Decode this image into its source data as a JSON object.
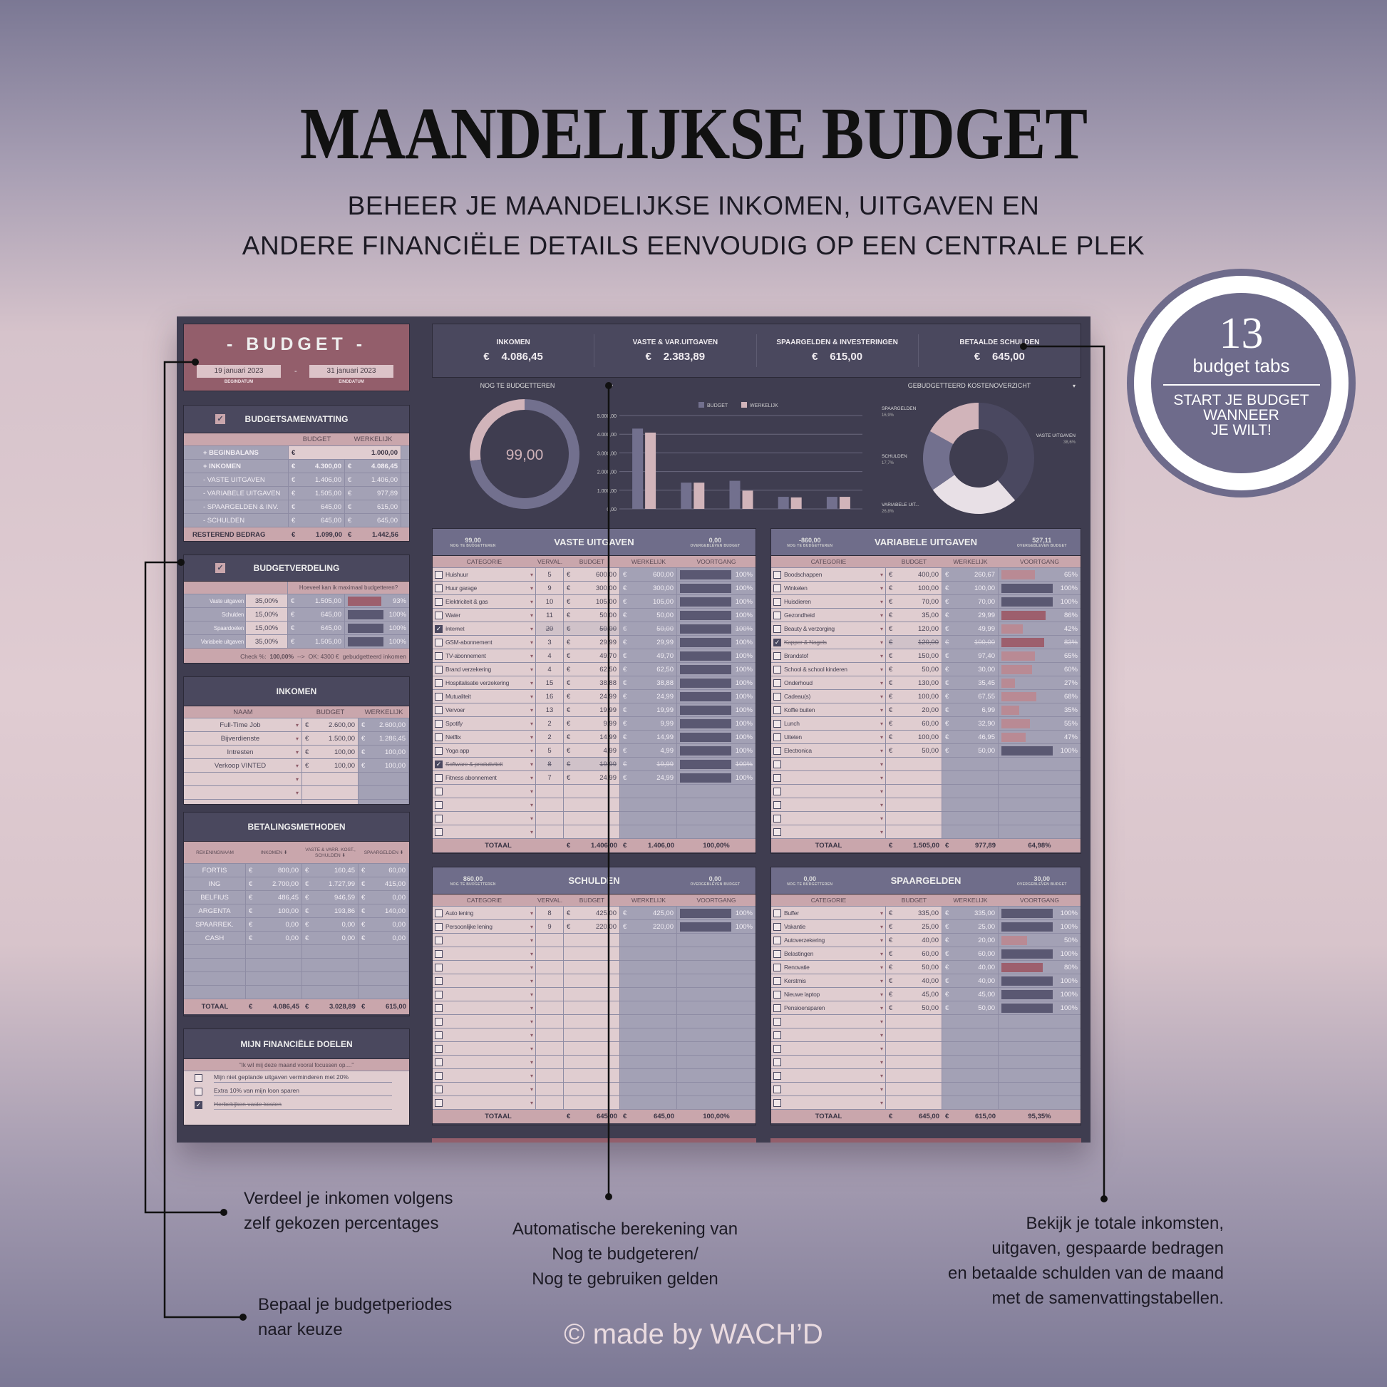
{
  "header": {
    "title": "MAANDELIJKSE BUDGET",
    "subtitle_1": "BEHEER JE MAANDELIJKSE INKOMEN, UITGAVEN EN",
    "subtitle_2": "ANDERE FINANCIËLE DETAILS EENVOUDIG OP EEN CENTRALE PLEK"
  },
  "badge": {
    "number": "13",
    "label": "budget tabs",
    "line1": "START JE BUDGET",
    "line2": "WANNEER",
    "line3": "JE WILT!"
  },
  "currency": "€",
  "labels": {
    "nog": "NOG TE BUDGETTEREN",
    "over": "OVERGEBLEVEN BUDGET",
    "totaal": "TOTAAL"
  },
  "budget": {
    "title": "- BUDGET -",
    "start": "19 januari 2023",
    "start_label": "BEGINDATUM",
    "end": "31 januari 2023",
    "end_label": "EINDDATUM",
    "dash": "-"
  },
  "samenvatting": {
    "title": "BUDGETSAMENVATTING",
    "headers": [
      "BUDGET",
      "WERKELIJK"
    ],
    "rows": [
      {
        "label": "+ BEGINBALANS",
        "budget": "1.000,00",
        "actual": ""
      },
      {
        "label": "+ INKOMEN",
        "budget": "4.300,00",
        "actual": "4.086,45"
      },
      {
        "label": "- VASTE UITGAVEN",
        "budget": "1.406,00",
        "actual": "1.406,00"
      },
      {
        "label": "- VARIABELE UITGAVEN",
        "budget": "1.505,00",
        "actual": "977,89"
      },
      {
        "label": "- SPAARGELDEN & INV.",
        "budget": "645,00",
        "actual": "615,00"
      },
      {
        "label": "- SCHULDEN",
        "budget": "645,00",
        "actual": "645,00"
      }
    ],
    "total": {
      "label": "RESTEREND BEDRAG",
      "budget": "1.099,00",
      "actual": "1.442,56"
    }
  },
  "verdeling": {
    "title": "BUDGETVERDELING",
    "question": "Hoeveel kan ik maximaal budgetteren?",
    "rows": [
      {
        "label": "Vaste uitgaven",
        "pct": "35,00%",
        "amount": "1.505,00",
        "progress": "93%"
      },
      {
        "label": "Schulden",
        "pct": "15,00%",
        "amount": "645,00",
        "progress": "100%"
      },
      {
        "label": "Spaardoelen",
        "pct": "15,00%",
        "amount": "645,00",
        "progress": "100%"
      },
      {
        "label": "Variabele uitgaven",
        "pct": "35,00%",
        "amount": "1.505,00",
        "progress": "100%"
      }
    ],
    "check_label": "Check %:",
    "check_value": "100,00%",
    "arrow": "-->",
    "ok": "OK: 4300 €",
    "ok_note": "gebudgetteerd inkomen"
  },
  "inkomen": {
    "title": "INKOMEN",
    "headers": [
      "NAAM",
      "BUDGET",
      "WERKELIJK"
    ],
    "rows": [
      {
        "name": "Full-Time Job",
        "budget": "2.600,00",
        "actual": "2.600,00"
      },
      {
        "name": "Bijverdienste",
        "budget": "1.500,00",
        "actual": "1.286,45"
      },
      {
        "name": "Intresten",
        "budget": "100,00",
        "actual": "100,00"
      },
      {
        "name": "Verkoop VINTED",
        "budget": "100,00",
        "actual": "100,00"
      }
    ]
  },
  "betaling": {
    "title": "BETALINGSMETHODEN",
    "headers": [
      "REKENINGNAAM",
      "INKOMEN ⬇",
      "VASTE & VARR. KOST., SCHULDEN ⬇",
      "SPAARGELDEN ⬇"
    ],
    "rows": [
      {
        "name": "FORTIS",
        "inkomen": "800,00",
        "vaste": "160,45",
        "spaar": "60,00"
      },
      {
        "name": "ING",
        "inkomen": "2.700,00",
        "vaste": "1.727,99",
        "spaar": "415,00"
      },
      {
        "name": "BELFIUS",
        "inkomen": "486,45",
        "vaste": "946,59",
        "spaar": "0,00"
      },
      {
        "name": "ARGENTA",
        "inkomen": "100,00",
        "vaste": "193,86",
        "spaar": "140,00"
      },
      {
        "name": "SPAARREK.",
        "inkomen": "0,00",
        "vaste": "0,00",
        "spaar": "0,00"
      },
      {
        "name": "CASH",
        "inkomen": "0,00",
        "vaste": "0,00",
        "spaar": "0,00"
      }
    ],
    "total": {
      "label": "TOTAAL",
      "inkomen": "4.086,45",
      "vaste": "3.028,89",
      "spaar": "615,00"
    }
  },
  "doelen": {
    "title": "MIJN FINANCIËLE DOELEN",
    "quote": "\"Ik wil mij deze maand vooral focussen op....\"",
    "items": [
      {
        "text": "Mijn niet geplande uitgaven verminderen met 20%",
        "done": false
      },
      {
        "text": "Extra 10% van mijn loon sparen",
        "done": false
      },
      {
        "text": "Herbekijken vaste kosten",
        "done": true
      }
    ]
  },
  "kpis": [
    {
      "label": "INKOMEN",
      "value": "4.086,45"
    },
    {
      "label": "VASTE & VAR.UITGAVEN",
      "value": "2.383,89"
    },
    {
      "label": "SPAARGELDEN & INVESTERINGEN",
      "value": "615,00"
    },
    {
      "label": "BETAALDE SCHULDEN",
      "value": "645,00"
    }
  ],
  "chart_data": [
    {
      "type": "pie",
      "title": "NOG TE BUDGETTEREN",
      "center_value": "99,00",
      "segments": [
        {
          "share": 0.27,
          "color": "#d1b4ba"
        },
        {
          "share": 0.73,
          "color": "#72708e"
        }
      ]
    },
    {
      "type": "bar",
      "title": "",
      "legend": [
        "BUDGET",
        "WERKELIJK"
      ],
      "legend_placement": "top",
      "colors": [
        "#72708e",
        "#d1b4ba"
      ],
      "ylim": [
        0,
        5000
      ],
      "yticks": [
        "0,00",
        "1.000,00",
        "2.000,00",
        "3.000,00",
        "4.000,00",
        "5.000,00"
      ],
      "grid": true,
      "series": [
        {
          "name": "BUDGET",
          "values": [
            4300,
            1406,
            1505,
            645,
            645
          ]
        },
        {
          "name": "WERKELIJK",
          "values": [
            4086.45,
            1406,
            977.89,
            615,
            645
          ]
        }
      ]
    },
    {
      "type": "pie",
      "title": "GEBUDGETTEERD KOSTENOVERZICHT",
      "donut": true,
      "slices": [
        {
          "label": "VASTE UITGAVEN",
          "value": 38.6,
          "text": "38,6%",
          "color": "#4a4860"
        },
        {
          "label": "VARIABELE UIT...",
          "value": 26.8,
          "text": "26,8%",
          "color": "#e8e0e6"
        },
        {
          "label": "SCHULDEN",
          "value": 17.7,
          "text": "17,7%",
          "color": "#72708e"
        },
        {
          "label": "SPAARGELDEN",
          "value": 16.9,
          "text": "16,9%",
          "color": "#d1b4ba"
        }
      ]
    }
  ],
  "vaste": {
    "title": "VASTE UITGAVEN",
    "nog_value": "99,00",
    "over_value": "0,00",
    "columns": [
      "CATEGORIE",
      "VERVAL.",
      "BUDGET",
      "WERKELIJK",
      "VOORTGANG"
    ],
    "rows": [
      {
        "cat": "Huishuur",
        "verval": "5",
        "budget": "600,00",
        "actual": "600,00",
        "progress": "100%",
        "done": false
      },
      {
        "cat": "Huur garage",
        "verval": "9",
        "budget": "300,00",
        "actual": "300,00",
        "progress": "100%",
        "done": false
      },
      {
        "cat": "Elektriciteit & gas",
        "verval": "10",
        "budget": "105,00",
        "actual": "105,00",
        "progress": "100%",
        "done": false
      },
      {
        "cat": "Water",
        "verval": "11",
        "budget": "50,00",
        "actual": "50,00",
        "progress": "100%",
        "done": false
      },
      {
        "cat": "Internet",
        "verval": "20",
        "budget": "50,00",
        "actual": "50,00",
        "progress": "100%",
        "done": true
      },
      {
        "cat": "GSM-abonnement",
        "verval": "3",
        "budget": "29,99",
        "actual": "29,99",
        "progress": "100%",
        "done": false
      },
      {
        "cat": "TV-abonnement",
        "verval": "4",
        "budget": "49,70",
        "actual": "49,70",
        "progress": "100%",
        "done": false
      },
      {
        "cat": "Brand verzekering",
        "verval": "4",
        "budget": "62,50",
        "actual": "62,50",
        "progress": "100%",
        "done": false
      },
      {
        "cat": "Hospitalisatie verzekering",
        "verval": "15",
        "budget": "38,88",
        "actual": "38,88",
        "progress": "100%",
        "done": false
      },
      {
        "cat": "Mutualiteit",
        "verval": "16",
        "budget": "24,99",
        "actual": "24,99",
        "progress": "100%",
        "done": false
      },
      {
        "cat": "Vervoer",
        "verval": "13",
        "budget": "19,99",
        "actual": "19,99",
        "progress": "100%",
        "done": false
      },
      {
        "cat": "Spotify",
        "verval": "2",
        "budget": "9,99",
        "actual": "9,99",
        "progress": "100%",
        "done": false
      },
      {
        "cat": "Netflix",
        "verval": "2",
        "budget": "14,99",
        "actual": "14,99",
        "progress": "100%",
        "done": false
      },
      {
        "cat": "Yoga app",
        "verval": "5",
        "budget": "4,99",
        "actual": "4,99",
        "progress": "100%",
        "done": false
      },
      {
        "cat": "Software & produtiviteit",
        "verval": "8",
        "budget": "19,99",
        "actual": "19,99",
        "progress": "100%",
        "done": true
      },
      {
        "cat": "Fitness abonnement",
        "verval": "7",
        "budget": "24,99",
        "actual": "24,99",
        "progress": "100%",
        "done": false
      }
    ],
    "total": {
      "budget": "1.406,00",
      "actual": "1.406,00",
      "progress": "100,00%"
    }
  },
  "variabel": {
    "title": "VARIABELE UITGAVEN",
    "nog_value": "-860,00",
    "over_value": "527,11",
    "columns": [
      "CATEGORIE",
      "BUDGET",
      "WERKELIJK",
      "VOORTGANG"
    ],
    "rows": [
      {
        "cat": "Boodschappen",
        "budget": "400,00",
        "actual": "260,67",
        "progress": "65%",
        "done": false
      },
      {
        "cat": "Winkelen",
        "budget": "100,00",
        "actual": "100,00",
        "progress": "100%",
        "done": false
      },
      {
        "cat": "Huisdieren",
        "budget": "70,00",
        "actual": "70,00",
        "progress": "100%",
        "done": false
      },
      {
        "cat": "Gezondheid",
        "budget": "35,00",
        "actual": "29,99",
        "progress": "86%",
        "done": false
      },
      {
        "cat": "Beauty & verzorging",
        "budget": "120,00",
        "actual": "49,99",
        "progress": "42%",
        "done": false
      },
      {
        "cat": "Kapper & Nagels",
        "budget": "120,00",
        "actual": "100,00",
        "progress": "83%",
        "done": true
      },
      {
        "cat": "Brandstof",
        "budget": "150,00",
        "actual": "97,40",
        "progress": "65%",
        "done": false
      },
      {
        "cat": "School & school kinderen",
        "budget": "50,00",
        "actual": "30,00",
        "progress": "60%",
        "done": false
      },
      {
        "cat": "Onderhoud",
        "budget": "130,00",
        "actual": "35,45",
        "progress": "27%",
        "done": false
      },
      {
        "cat": "Cadeau(s)",
        "budget": "100,00",
        "actual": "67,55",
        "progress": "68%",
        "done": false
      },
      {
        "cat": "Koffie buiten",
        "budget": "20,00",
        "actual": "6,99",
        "progress": "35%",
        "done": false
      },
      {
        "cat": "Lunch",
        "budget": "60,00",
        "actual": "32,90",
        "progress": "55%",
        "done": false
      },
      {
        "cat": "Uiteten",
        "budget": "100,00",
        "actual": "46,95",
        "progress": "47%",
        "done": false
      },
      {
        "cat": "Electronica",
        "budget": "50,00",
        "actual": "50,00",
        "progress": "100%",
        "done": false
      }
    ],
    "total": {
      "budget": "1.505,00",
      "actual": "977,89",
      "progress": "64,98%"
    }
  },
  "schulden": {
    "title": "SCHULDEN",
    "nog_value": "860,00",
    "over_value": "0,00",
    "columns": [
      "CATEGORIE",
      "VERVAL.",
      "BUDGET",
      "WERKELIJK",
      "VOORTGANG"
    ],
    "rows": [
      {
        "cat": "Auto lening",
        "verval": "8",
        "budget": "425,00",
        "actual": "425,00",
        "progress": "100%",
        "done": false
      },
      {
        "cat": "Persoonlijke lening",
        "verval": "9",
        "budget": "220,00",
        "actual": "220,00",
        "progress": "100%",
        "done": false
      }
    ],
    "total": {
      "budget": "645,00",
      "actual": "645,00",
      "progress": "100,00%"
    }
  },
  "spaar": {
    "title": "SPAARGELDEN",
    "nog_value": "0,00",
    "over_value": "30,00",
    "columns": [
      "CATEGORIE",
      "BUDGET",
      "WERKELIJK",
      "VOORTGANG"
    ],
    "rows": [
      {
        "cat": "Buffer",
        "budget": "335,00",
        "actual": "335,00",
        "progress": "100%",
        "done": false
      },
      {
        "cat": "Vakantie",
        "budget": "25,00",
        "actual": "25,00",
        "progress": "100%",
        "done": false
      },
      {
        "cat": "Autoverzekering",
        "budget": "40,00",
        "actual": "20,00",
        "progress": "50%",
        "done": false
      },
      {
        "cat": "Belastingen",
        "budget": "60,00",
        "actual": "60,00",
        "progress": "100%",
        "done": false
      },
      {
        "cat": "Renovatie",
        "budget": "50,00",
        "actual": "40,00",
        "progress": "80%",
        "done": false
      },
      {
        "cat": "Kerstmis",
        "budget": "40,00",
        "actual": "40,00",
        "progress": "100%",
        "done": false
      },
      {
        "cat": "Nieuwe laptop",
        "budget": "45,00",
        "actual": "45,00",
        "progress": "100%",
        "done": false
      },
      {
        "cat": "Pensioensparen",
        "budget": "50,00",
        "actual": "50,00",
        "progress": "100%",
        "done": false
      }
    ],
    "total": {
      "budget": "645,00",
      "actual": "615,00",
      "progress": "95,35%"
    }
  },
  "notes": {
    "verdeel": [
      "Verdeel je inkomen volgens",
      "zelf gekozen percentages"
    ],
    "bepaal": [
      "Bepaal je budgetperiodes",
      "naar keuze"
    ],
    "auto": [
      "Automatische berekening van",
      "Nog te budgeteren/",
      "Nog te gebruiken gelden"
    ],
    "bekijk": [
      "Bekijk je totale inkomsten,",
      "uitgaven, gespaarde bedragen",
      "en betaalde schulden van de maand",
      "met de samenvattingstabellen."
    ]
  },
  "footer": "© made by WACH’D"
}
